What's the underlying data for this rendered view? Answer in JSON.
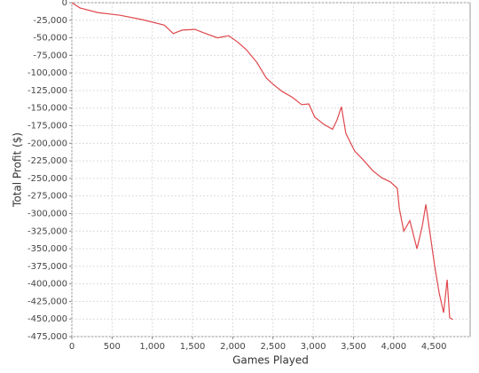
{
  "chart_data": {
    "type": "line",
    "x_label": "Games Played",
    "y_label": "Total Profit ($)",
    "x": [
      0,
      100,
      320,
      600,
      870,
      1150,
      1260,
      1370,
      1530,
      1665,
      1810,
      1950,
      2060,
      2170,
      2300,
      2415,
      2500,
      2610,
      2745,
      2855,
      2945,
      3020,
      3130,
      3240,
      3295,
      3350,
      3405,
      3515,
      3625,
      3740,
      3850,
      3960,
      4045,
      4070,
      4125,
      4200,
      4290,
      4355,
      4400,
      4455,
      4510,
      4565,
      4620,
      4665,
      4695,
      4735
    ],
    "values": [
      0,
      -7500,
      -14000,
      -18000,
      -24000,
      -32000,
      -44000,
      -39000,
      -38000,
      -44000,
      -50000,
      -47000,
      -56000,
      -67000,
      -85000,
      -107000,
      -116000,
      -126000,
      -135000,
      -145000,
      -144000,
      -163000,
      -173000,
      -180000,
      -167000,
      -148000,
      -186000,
      -211000,
      -224000,
      -239000,
      -249000,
      -255000,
      -264000,
      -293000,
      -325000,
      -310000,
      -350000,
      -318000,
      -287000,
      -331000,
      -375000,
      -413000,
      -441000,
      -394000,
      -448000,
      -451000
    ],
    "color": "#e0474c",
    "grid": true,
    "xlim": [
      0,
      4950
    ],
    "ylim": [
      -475000,
      0
    ],
    "xticks": [
      0,
      500,
      {
        "value": 1000,
        "label": "1,000"
      },
      {
        "value": 1500,
        "label": "1,500"
      },
      {
        "value": 2000,
        "label": "2,000"
      },
      {
        "value": 2500,
        "label": "2,500"
      },
      {
        "value": 3000,
        "label": "3,000"
      },
      {
        "value": 3500,
        "label": "3,500"
      },
      {
        "value": 4000,
        "label": "4,000"
      },
      {
        "value": 4500,
        "label": "4,500"
      }
    ],
    "yticks": [
      0,
      {
        "value": -25000,
        "label": "-25,000"
      },
      {
        "value": -50000,
        "label": "-50,000"
      },
      {
        "value": -75000,
        "label": "-75,000"
      },
      {
        "value": -100000,
        "label": "-100,000"
      },
      {
        "value": -125000,
        "label": "-125,000"
      },
      {
        "value": -150000,
        "label": "-150,000"
      },
      {
        "value": -175000,
        "label": "-175,000"
      },
      {
        "value": -200000,
        "label": "-200,000"
      },
      {
        "value": -225000,
        "label": "-225,000"
      },
      {
        "value": -250000,
        "label": "-250,000"
      },
      {
        "value": -275000,
        "label": "-275,000"
      },
      {
        "value": -300000,
        "label": "-300,000"
      },
      {
        "value": -325000,
        "label": "-325,000"
      },
      {
        "value": -350000,
        "label": "-350,000"
      },
      {
        "value": -375000,
        "label": "-375,000"
      },
      {
        "value": -400000,
        "label": "-400,000"
      },
      {
        "value": -425000,
        "label": "-425,000"
      },
      {
        "value": -450000,
        "label": "-450,000"
      },
      {
        "value": -475000,
        "label": "-475,000"
      }
    ]
  }
}
